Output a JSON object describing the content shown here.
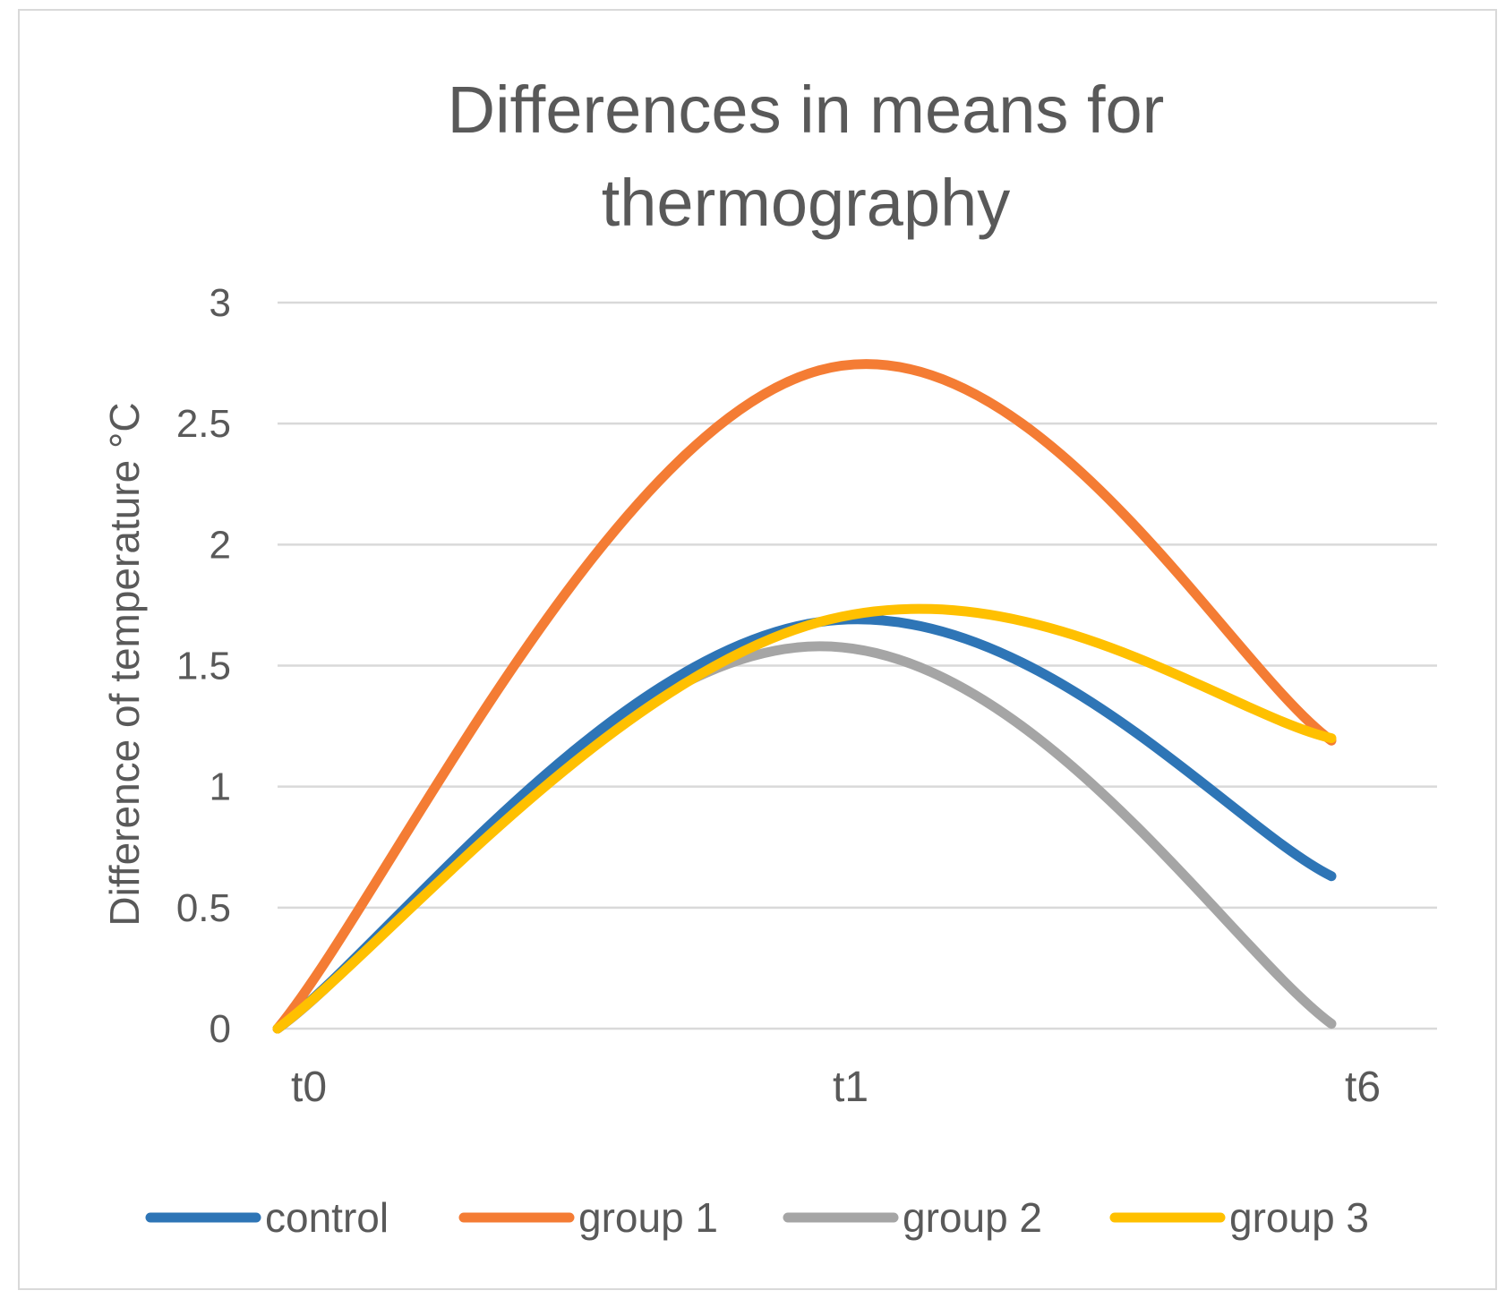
{
  "chart_data": {
    "type": "line",
    "title_lines": [
      "Differences in means for",
      "thermography"
    ],
    "ylabel": "Difference of temperature  °C",
    "xlabel": "",
    "categories": [
      "t0",
      "t1",
      "t6"
    ],
    "ylim": [
      0,
      3
    ],
    "yticks": [
      "0",
      "0.5",
      "1",
      "1.5",
      "2",
      "2.5",
      "3"
    ],
    "grid": true,
    "smooth": true,
    "legend_position": "bottom",
    "series": [
      {
        "name": "control",
        "color": "#2e75b6",
        "values": [
          0,
          1.68,
          0.63
        ]
      },
      {
        "name": "group 1",
        "color": "#f47c34",
        "values": [
          0,
          2.72,
          1.19
        ]
      },
      {
        "name": "group 2",
        "color": "#a5a5a5",
        "values": [
          0,
          1.58,
          0.02
        ]
      },
      {
        "name": "group 3",
        "color": "#ffc000",
        "values": [
          0,
          1.68,
          1.2
        ]
      }
    ]
  }
}
